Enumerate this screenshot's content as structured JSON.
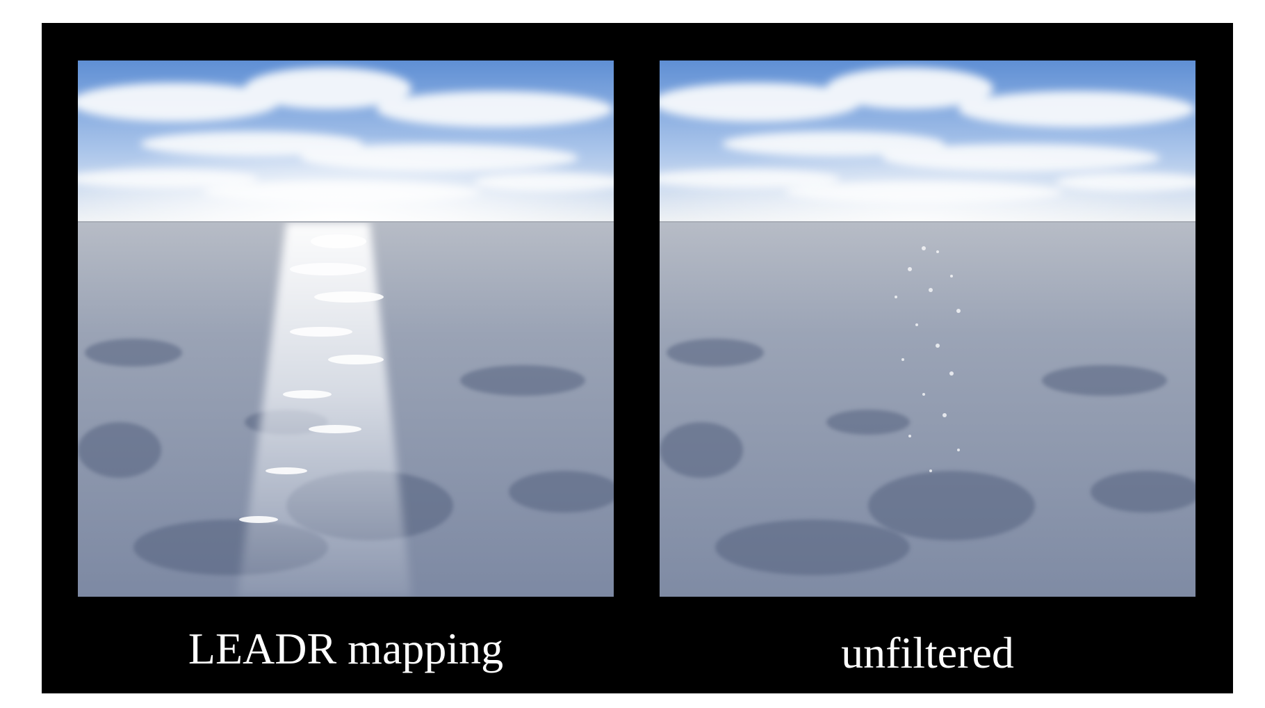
{
  "figure": {
    "left_panel": {
      "caption": "LEADR mapping",
      "image_description_icon": "ocean-sunlit-highlight"
    },
    "right_panel": {
      "caption": "unfiltered",
      "image_description_icon": "ocean-sparkle"
    }
  },
  "colors": {
    "background": "#ffffff",
    "frame": "#000000",
    "caption_text": "#ffffff",
    "sky_blue": "#6f9bd8",
    "cloud_white": "#f4f7fb",
    "ocean_gray": "#8e97ac",
    "ocean_dark": "#5d6a86"
  }
}
